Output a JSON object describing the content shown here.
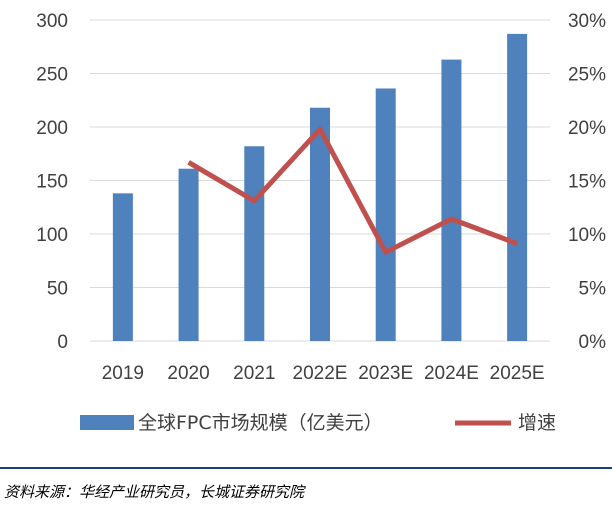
{
  "chart_data": {
    "type": "bar",
    "categories": [
      "2019",
      "2020",
      "2021",
      "2022E",
      "2023E",
      "2024E",
      "2025E"
    ],
    "series": [
      {
        "name": "全球FPC市场规模（亿美元）",
        "type": "bar",
        "axis": "left",
        "values": [
          138,
          161,
          182,
          218,
          236,
          263,
          287
        ]
      },
      {
        "name": "增速",
        "type": "line",
        "axis": "right",
        "values": [
          null,
          16.7,
          13.1,
          19.8,
          8.3,
          11.4,
          9.1
        ]
      }
    ],
    "yticks_left": [
      "0",
      "50",
      "100",
      "150",
      "200",
      "250",
      "300"
    ],
    "yticks_right": [
      "0%",
      "5%",
      "10%",
      "15%",
      "20%",
      "25%",
      "30%"
    ],
    "ylim_left": [
      0,
      300
    ],
    "ylim_right": [
      0,
      30
    ],
    "grid": true,
    "legend": "bottom",
    "colors": {
      "bar": "#4f81bd",
      "line": "#c0504d",
      "grid": "#d9d9d9"
    }
  },
  "source_text": "资料来源：华经产业研究员，长城证券研究院"
}
